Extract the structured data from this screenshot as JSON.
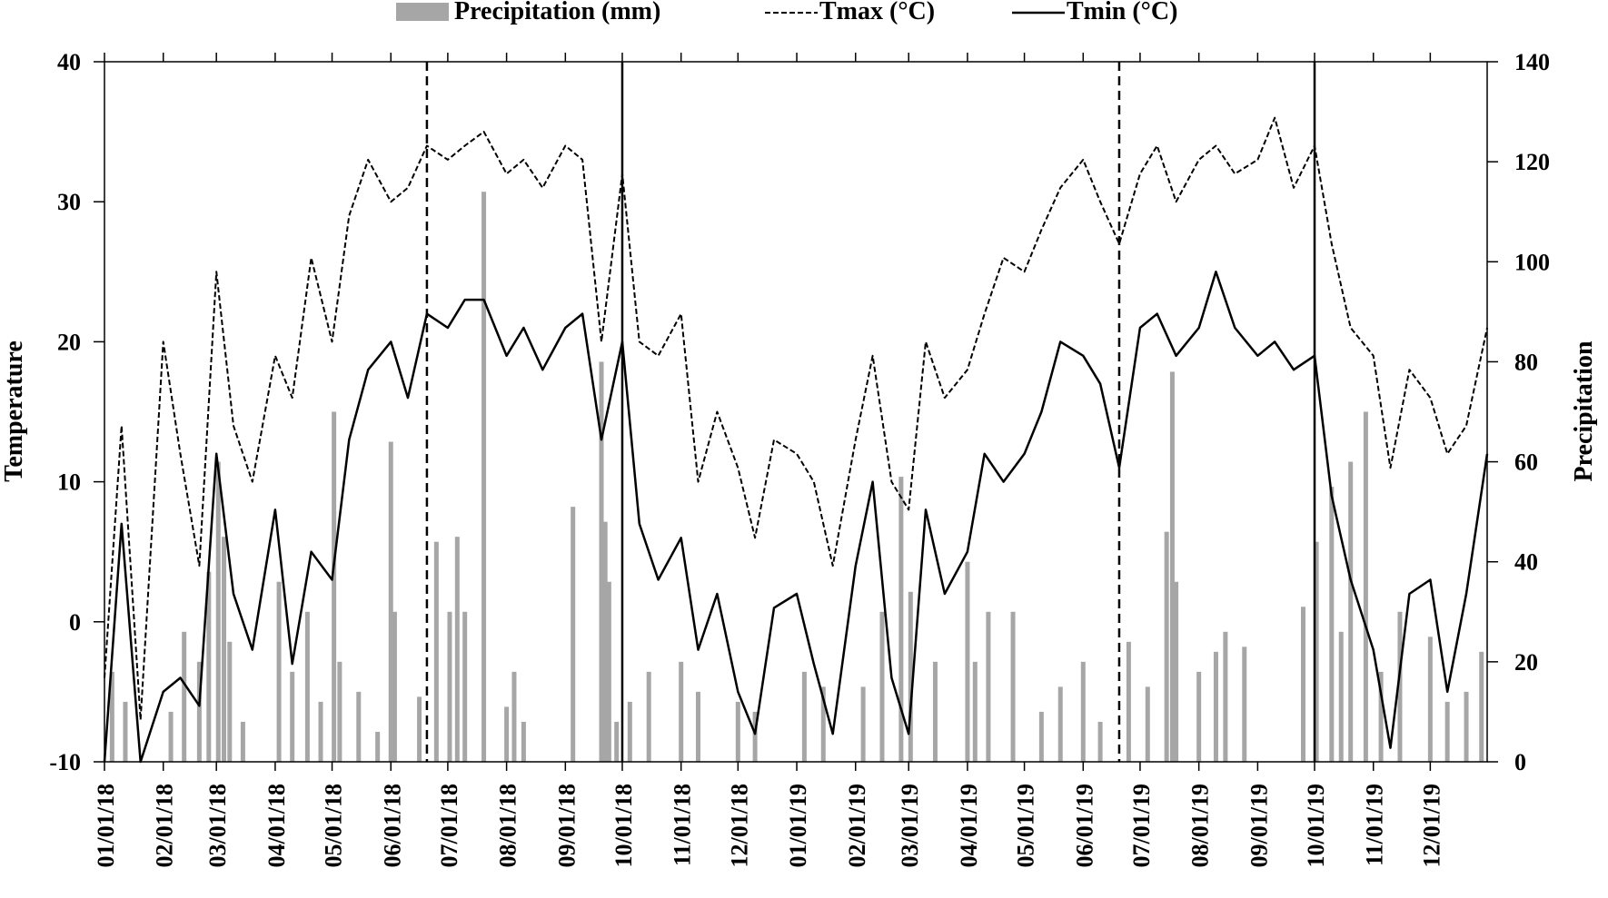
{
  "chart_data": {
    "type": "bar+line",
    "title": "",
    "legend": {
      "placement": "top",
      "entries": [
        {
          "label": "Precipitation (mm)",
          "style": "bar",
          "color": "#a6a6a6"
        },
        {
          "label": "Tmax (°C)",
          "style": "dashed-line",
          "color": "#000000"
        },
        {
          "label": "Tmin (°C)",
          "style": "solid-line",
          "color": "#000000"
        }
      ]
    },
    "y_left": {
      "label": "Temperature",
      "range": [
        -10,
        40
      ],
      "ticks": [
        -10,
        0,
        10,
        20,
        30,
        40
      ]
    },
    "y_right": {
      "label": "Precipitation",
      "range": [
        0,
        140
      ],
      "ticks": [
        0,
        20,
        40,
        60,
        80,
        100,
        120,
        140
      ]
    },
    "x": {
      "range": [
        "01/01/18",
        "12/31/19"
      ],
      "tick_labels": [
        "01/01/18",
        "02/01/18",
        "03/01/18",
        "04/01/18",
        "05/01/18",
        "06/01/18",
        "07/01/18",
        "08/01/18",
        "09/01/18",
        "10/01/18",
        "11/01/18",
        "12/01/18",
        "01/01/19",
        "02/01/19",
        "03/01/19",
        "04/01/19",
        "05/01/19",
        "06/01/19",
        "07/01/19",
        "08/01/19",
        "09/01/19",
        "10/01/19",
        "11/01/19",
        "12/01/19"
      ]
    },
    "reference_lines": [
      {
        "date": "06/20/18",
        "style": "dashed"
      },
      {
        "date": "10/01/18",
        "style": "solid"
      },
      {
        "date": "06/20/19",
        "style": "dashed"
      },
      {
        "date": "10/01/19",
        "style": "solid"
      }
    ],
    "series": [
      {
        "name": "Tmax (°C)",
        "units": "°C",
        "values": [
          {
            "date": "01/01/18",
            "v": -4
          },
          {
            "date": "01/10/18",
            "v": 14
          },
          {
            "date": "01/20/18",
            "v": -7
          },
          {
            "date": "02/01/18",
            "v": 20
          },
          {
            "date": "02/10/18",
            "v": 12
          },
          {
            "date": "02/20/18",
            "v": 4
          },
          {
            "date": "03/01/18",
            "v": 25
          },
          {
            "date": "03/10/18",
            "v": 14
          },
          {
            "date": "03/20/18",
            "v": 10
          },
          {
            "date": "04/01/18",
            "v": 19
          },
          {
            "date": "04/10/18",
            "v": 16
          },
          {
            "date": "04/20/18",
            "v": 26
          },
          {
            "date": "05/01/18",
            "v": 20
          },
          {
            "date": "05/10/18",
            "v": 29
          },
          {
            "date": "05/20/18",
            "v": 33
          },
          {
            "date": "06/01/18",
            "v": 30
          },
          {
            "date": "06/10/18",
            "v": 31
          },
          {
            "date": "06/20/18",
            "v": 34
          },
          {
            "date": "07/01/18",
            "v": 33
          },
          {
            "date": "07/10/18",
            "v": 34
          },
          {
            "date": "07/20/18",
            "v": 35
          },
          {
            "date": "08/01/18",
            "v": 32
          },
          {
            "date": "08/10/18",
            "v": 33
          },
          {
            "date": "08/20/18",
            "v": 31
          },
          {
            "date": "09/01/18",
            "v": 34
          },
          {
            "date": "09/10/18",
            "v": 33
          },
          {
            "date": "09/20/18",
            "v": 20
          },
          {
            "date": "10/01/18",
            "v": 32
          },
          {
            "date": "10/10/18",
            "v": 20
          },
          {
            "date": "10/20/18",
            "v": 19
          },
          {
            "date": "11/01/18",
            "v": 22
          },
          {
            "date": "11/10/18",
            "v": 10
          },
          {
            "date": "11/20/18",
            "v": 15
          },
          {
            "date": "12/01/18",
            "v": 11
          },
          {
            "date": "12/10/18",
            "v": 6
          },
          {
            "date": "12/20/18",
            "v": 13
          },
          {
            "date": "01/01/19",
            "v": 12
          },
          {
            "date": "01/10/19",
            "v": 10
          },
          {
            "date": "01/20/19",
            "v": 4
          },
          {
            "date": "02/01/19",
            "v": 13
          },
          {
            "date": "02/10/19",
            "v": 19
          },
          {
            "date": "02/20/19",
            "v": 10
          },
          {
            "date": "03/01/19",
            "v": 8
          },
          {
            "date": "03/10/19",
            "v": 20
          },
          {
            "date": "03/20/19",
            "v": 16
          },
          {
            "date": "04/01/19",
            "v": 18
          },
          {
            "date": "04/10/19",
            "v": 22
          },
          {
            "date": "04/20/19",
            "v": 26
          },
          {
            "date": "05/01/19",
            "v": 25
          },
          {
            "date": "05/10/19",
            "v": 28
          },
          {
            "date": "05/20/19",
            "v": 31
          },
          {
            "date": "06/01/19",
            "v": 33
          },
          {
            "date": "06/10/19",
            "v": 30
          },
          {
            "date": "06/20/19",
            "v": 27
          },
          {
            "date": "07/01/19",
            "v": 32
          },
          {
            "date": "07/10/19",
            "v": 34
          },
          {
            "date": "07/20/19",
            "v": 30
          },
          {
            "date": "08/01/19",
            "v": 33
          },
          {
            "date": "08/10/19",
            "v": 34
          },
          {
            "date": "08/20/19",
            "v": 32
          },
          {
            "date": "09/01/19",
            "v": 33
          },
          {
            "date": "09/10/19",
            "v": 36
          },
          {
            "date": "09/20/19",
            "v": 31
          },
          {
            "date": "10/01/19",
            "v": 34
          },
          {
            "date": "10/10/19",
            "v": 27
          },
          {
            "date": "10/20/19",
            "v": 21
          },
          {
            "date": "11/01/19",
            "v": 19
          },
          {
            "date": "11/10/19",
            "v": 11
          },
          {
            "date": "11/20/19",
            "v": 18
          },
          {
            "date": "12/01/19",
            "v": 16
          },
          {
            "date": "12/10/19",
            "v": 12
          },
          {
            "date": "12/20/19",
            "v": 14
          },
          {
            "date": "12/31/19",
            "v": 21
          }
        ]
      },
      {
        "name": "Tmin (°C)",
        "units": "°C",
        "values": [
          {
            "date": "01/01/18",
            "v": -10
          },
          {
            "date": "01/10/18",
            "v": 7
          },
          {
            "date": "01/20/18",
            "v": -10
          },
          {
            "date": "02/01/18",
            "v": -5
          },
          {
            "date": "02/10/18",
            "v": -4
          },
          {
            "date": "02/20/18",
            "v": -6
          },
          {
            "date": "03/01/18",
            "v": 12
          },
          {
            "date": "03/10/18",
            "v": 2
          },
          {
            "date": "03/20/18",
            "v": -2
          },
          {
            "date": "04/01/18",
            "v": 8
          },
          {
            "date": "04/10/18",
            "v": -3
          },
          {
            "date": "04/20/18",
            "v": 5
          },
          {
            "date": "05/01/18",
            "v": 3
          },
          {
            "date": "05/10/18",
            "v": 13
          },
          {
            "date": "05/20/18",
            "v": 18
          },
          {
            "date": "06/01/18",
            "v": 20
          },
          {
            "date": "06/10/18",
            "v": 16
          },
          {
            "date": "06/20/18",
            "v": 22
          },
          {
            "date": "07/01/18",
            "v": 21
          },
          {
            "date": "07/10/18",
            "v": 23
          },
          {
            "date": "07/20/18",
            "v": 23
          },
          {
            "date": "08/01/18",
            "v": 19
          },
          {
            "date": "08/10/18",
            "v": 21
          },
          {
            "date": "08/20/18",
            "v": 18
          },
          {
            "date": "09/01/18",
            "v": 21
          },
          {
            "date": "09/10/18",
            "v": 22
          },
          {
            "date": "09/20/18",
            "v": 13
          },
          {
            "date": "10/01/18",
            "v": 20
          },
          {
            "date": "10/10/18",
            "v": 7
          },
          {
            "date": "10/20/18",
            "v": 3
          },
          {
            "date": "11/01/18",
            "v": 6
          },
          {
            "date": "11/10/18",
            "v": -2
          },
          {
            "date": "11/20/18",
            "v": 2
          },
          {
            "date": "12/01/18",
            "v": -5
          },
          {
            "date": "12/10/18",
            "v": -8
          },
          {
            "date": "12/20/18",
            "v": 1
          },
          {
            "date": "01/01/19",
            "v": 2
          },
          {
            "date": "01/10/19",
            "v": -3
          },
          {
            "date": "01/20/19",
            "v": -8
          },
          {
            "date": "02/01/19",
            "v": 4
          },
          {
            "date": "02/10/19",
            "v": 10
          },
          {
            "date": "02/20/19",
            "v": -4
          },
          {
            "date": "03/01/19",
            "v": -8
          },
          {
            "date": "03/10/19",
            "v": 8
          },
          {
            "date": "03/20/19",
            "v": 2
          },
          {
            "date": "04/01/19",
            "v": 5
          },
          {
            "date": "04/10/19",
            "v": 12
          },
          {
            "date": "04/20/19",
            "v": 10
          },
          {
            "date": "05/01/19",
            "v": 12
          },
          {
            "date": "05/10/19",
            "v": 15
          },
          {
            "date": "05/20/19",
            "v": 20
          },
          {
            "date": "06/01/19",
            "v": 19
          },
          {
            "date": "06/10/19",
            "v": 17
          },
          {
            "date": "06/20/19",
            "v": 11
          },
          {
            "date": "07/01/19",
            "v": 21
          },
          {
            "date": "07/10/19",
            "v": 22
          },
          {
            "date": "07/20/19",
            "v": 19
          },
          {
            "date": "08/01/19",
            "v": 21
          },
          {
            "date": "08/10/19",
            "v": 25
          },
          {
            "date": "08/20/19",
            "v": 21
          },
          {
            "date": "09/01/19",
            "v": 19
          },
          {
            "date": "09/10/19",
            "v": 20
          },
          {
            "date": "09/20/19",
            "v": 18
          },
          {
            "date": "10/01/19",
            "v": 19
          },
          {
            "date": "10/10/19",
            "v": 9
          },
          {
            "date": "10/20/19",
            "v": 3
          },
          {
            "date": "11/01/19",
            "v": -2
          },
          {
            "date": "11/10/19",
            "v": -9
          },
          {
            "date": "11/20/19",
            "v": 2
          },
          {
            "date": "12/01/19",
            "v": 3
          },
          {
            "date": "12/10/19",
            "v": -5
          },
          {
            "date": "12/20/19",
            "v": 2
          },
          {
            "date": "12/31/19",
            "v": 12
          }
        ]
      },
      {
        "name": "Precipitation (mm)",
        "units": "mm",
        "values": [
          {
            "date": "01/05/18",
            "v": 18
          },
          {
            "date": "01/12/18",
            "v": 12
          },
          {
            "date": "02/05/18",
            "v": 10
          },
          {
            "date": "02/12/18",
            "v": 26
          },
          {
            "date": "02/20/18",
            "v": 20
          },
          {
            "date": "02/25/18",
            "v": 38
          },
          {
            "date": "03/02/18",
            "v": 60
          },
          {
            "date": "03/05/18",
            "v": 45
          },
          {
            "date": "03/08/18",
            "v": 24
          },
          {
            "date": "03/15/18",
            "v": 8
          },
          {
            "date": "04/03/18",
            "v": 36
          },
          {
            "date": "04/10/18",
            "v": 18
          },
          {
            "date": "04/18/18",
            "v": 30
          },
          {
            "date": "04/25/18",
            "v": 12
          },
          {
            "date": "05/02/18",
            "v": 70
          },
          {
            "date": "05/05/18",
            "v": 20
          },
          {
            "date": "05/15/18",
            "v": 14
          },
          {
            "date": "05/25/18",
            "v": 6
          },
          {
            "date": "06/01/18",
            "v": 64
          },
          {
            "date": "06/03/18",
            "v": 30
          },
          {
            "date": "06/16/18",
            "v": 13
          },
          {
            "date": "06/25/18",
            "v": 44
          },
          {
            "date": "07/02/18",
            "v": 30
          },
          {
            "date": "07/06/18",
            "v": 45
          },
          {
            "date": "07/10/18",
            "v": 30
          },
          {
            "date": "07/20/18",
            "v": 114
          },
          {
            "date": "08/01/18",
            "v": 11
          },
          {
            "date": "08/05/18",
            "v": 18
          },
          {
            "date": "08/10/18",
            "v": 8
          },
          {
            "date": "09/05/18",
            "v": 51
          },
          {
            "date": "09/20/18",
            "v": 80
          },
          {
            "date": "09/22/18",
            "v": 48
          },
          {
            "date": "09/24/18",
            "v": 36
          },
          {
            "date": "09/28/18",
            "v": 8
          },
          {
            "date": "10/05/18",
            "v": 12
          },
          {
            "date": "10/15/18",
            "v": 18
          },
          {
            "date": "11/01/18",
            "v": 20
          },
          {
            "date": "11/10/18",
            "v": 14
          },
          {
            "date": "12/01/18",
            "v": 12
          },
          {
            "date": "12/10/18",
            "v": 10
          },
          {
            "date": "01/05/19",
            "v": 18
          },
          {
            "date": "01/15/19",
            "v": 15
          },
          {
            "date": "02/05/19",
            "v": 15
          },
          {
            "date": "02/15/19",
            "v": 30
          },
          {
            "date": "02/25/19",
            "v": 57
          },
          {
            "date": "03/02/19",
            "v": 34
          },
          {
            "date": "03/15/19",
            "v": 20
          },
          {
            "date": "04/01/19",
            "v": 40
          },
          {
            "date": "04/05/19",
            "v": 20
          },
          {
            "date": "04/12/19",
            "v": 30
          },
          {
            "date": "04/25/19",
            "v": 30
          },
          {
            "date": "05/10/19",
            "v": 10
          },
          {
            "date": "05/20/19",
            "v": 15
          },
          {
            "date": "06/01/19",
            "v": 20
          },
          {
            "date": "06/10/19",
            "v": 8
          },
          {
            "date": "06/25/19",
            "v": 24
          },
          {
            "date": "07/05/19",
            "v": 15
          },
          {
            "date": "07/15/19",
            "v": 46
          },
          {
            "date": "07/18/19",
            "v": 78
          },
          {
            "date": "07/20/19",
            "v": 36
          },
          {
            "date": "08/01/19",
            "v": 18
          },
          {
            "date": "08/10/19",
            "v": 22
          },
          {
            "date": "08/15/19",
            "v": 26
          },
          {
            "date": "08/25/19",
            "v": 23
          },
          {
            "date": "09/25/19",
            "v": 31
          },
          {
            "date": "10/02/19",
            "v": 44
          },
          {
            "date": "10/10/19",
            "v": 55
          },
          {
            "date": "10/15/19",
            "v": 26
          },
          {
            "date": "10/20/19",
            "v": 60
          },
          {
            "date": "10/28/19",
            "v": 70
          },
          {
            "date": "11/05/19",
            "v": 18
          },
          {
            "date": "11/15/19",
            "v": 30
          },
          {
            "date": "12/01/19",
            "v": 25
          },
          {
            "date": "12/10/19",
            "v": 12
          },
          {
            "date": "12/20/19",
            "v": 14
          },
          {
            "date": "12/28/19",
            "v": 22
          }
        ]
      }
    ]
  }
}
